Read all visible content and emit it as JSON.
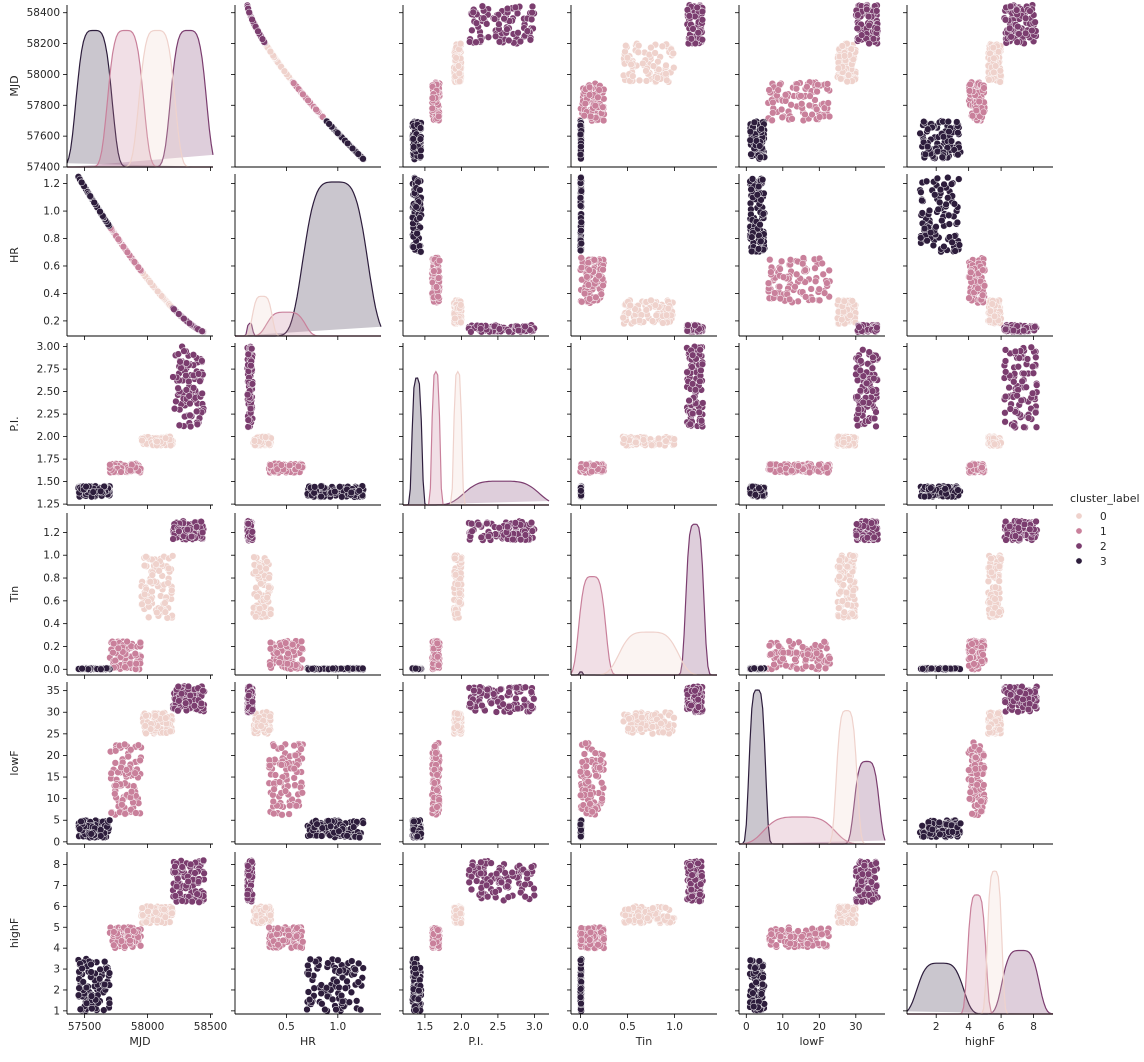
{
  "chart_data": {
    "type": "scatter",
    "title": "",
    "variables": [
      "MJD",
      "HR",
      "P.I.",
      "Tin",
      "lowF",
      "highF"
    ],
    "ticks": {
      "MJD": [
        57400,
        57600,
        57800,
        58000,
        58200,
        58400
      ],
      "HR": [
        0.2,
        0.4,
        0.6,
        0.8,
        1.0,
        1.2
      ],
      "P.I.": [
        1.25,
        1.5,
        1.75,
        2.0,
        2.25,
        2.5,
        2.75,
        3.0
      ],
      "Tin": [
        0.0,
        0.2,
        0.4,
        0.6,
        0.8,
        1.0,
        1.2
      ],
      "lowF": [
        0,
        5,
        10,
        15,
        20,
        25,
        30,
        35
      ],
      "highF": [
        1,
        2,
        3,
        4,
        5,
        6,
        7,
        8
      ]
    },
    "x_ticks": {
      "MJD": [
        57500,
        58000,
        58500
      ],
      "HR": [
        0.5,
        1.0
      ],
      "P.I.": [
        1.5,
        2.0,
        2.5,
        3.0
      ],
      "Tin": [
        0.0,
        0.5,
        1.0
      ],
      "lowF": [
        0,
        10,
        20,
        30
      ],
      "highF": [
        2,
        4,
        6,
        8
      ]
    },
    "axis_ranges": {
      "MJD": [
        57400,
        58450
      ],
      "HR": [
        0.09,
        1.27
      ],
      "P.I.": [
        1.24,
        3.04
      ],
      "Tin": [
        -0.05,
        1.37
      ],
      "lowF": [
        -0.5,
        37
      ],
      "highF": [
        0.85,
        8.6
      ]
    },
    "x_axis_ranges": {
      "MJD": [
        57360,
        58520
      ],
      "HR": [
        0.0,
        1.42
      ],
      "P.I.": [
        1.2,
        3.2
      ],
      "Tin": [
        -0.1,
        1.45
      ],
      "lowF": [
        -2,
        38
      ],
      "highF": [
        0.2,
        9.2
      ]
    },
    "legend": {
      "title": "cluster_label",
      "position": "right",
      "entries": [
        "0",
        "1",
        "2",
        "3"
      ]
    },
    "series": [
      {
        "cluster": "0",
        "color": "#efd2cc",
        "ranges": {
          "MJD": [
            57950,
            58200
          ],
          "HR": [
            0.18,
            0.35
          ],
          "P.I.": [
            1.9,
            2.0
          ],
          "Tin": [
            0.45,
            1.0
          ],
          "lowF": [
            25,
            30
          ],
          "highF": [
            5.2,
            6.0
          ]
        },
        "diag_peaks": {
          "MJD": 0.86,
          "HR": 0.25,
          "P.I.": 0.84,
          "Tin": 0.27,
          "lowF": 0.84,
          "highF": 0.9
        }
      },
      {
        "cluster": "1",
        "color": "#c9809b",
        "ranges": {
          "MJD": [
            57700,
            57950
          ],
          "HR": [
            0.33,
            0.66
          ],
          "P.I.": [
            1.6,
            1.7
          ],
          "Tin": [
            0.0,
            0.25
          ],
          "lowF": [
            6,
            23
          ],
          "highF": [
            4.0,
            5.0
          ]
        },
        "diag_peaks": {
          "MJD": 0.86,
          "HR": 0.15,
          "P.I.": 0.84,
          "Tin": 0.62,
          "lowF": 0.17,
          "highF": 0.75
        }
      },
      {
        "cluster": "2",
        "color": "#7b3d6f",
        "ranges": {
          "MJD": [
            58200,
            58450
          ],
          "HR": [
            0.12,
            0.17
          ],
          "P.I.": [
            2.1,
            3.0
          ],
          "Tin": [
            1.13,
            1.3
          ],
          "lowF": [
            30,
            36
          ],
          "highF": [
            6.2,
            8.2
          ]
        },
        "diag_peaks": {
          "MJD": 0.86,
          "HR": 0.08,
          "P.I.": 0.15,
          "Tin": 0.95,
          "lowF": 0.52,
          "highF": 0.4
        }
      },
      {
        "cluster": "3",
        "color": "#2d1d3c",
        "ranges": {
          "MJD": [
            57450,
            57700
          ],
          "HR": [
            0.7,
            1.25
          ],
          "P.I.": [
            1.33,
            1.45
          ],
          "Tin": [
            0.0,
            0.01
          ],
          "lowF": [
            1,
            5
          ],
          "highF": [
            1.0,
            3.5
          ]
        },
        "diag_peaks": {
          "MJD": 0.86,
          "HR": 0.97,
          "P.I.": 0.8,
          "Tin": 0.02,
          "lowF": 0.97,
          "highF": 0.32
        }
      }
    ]
  }
}
